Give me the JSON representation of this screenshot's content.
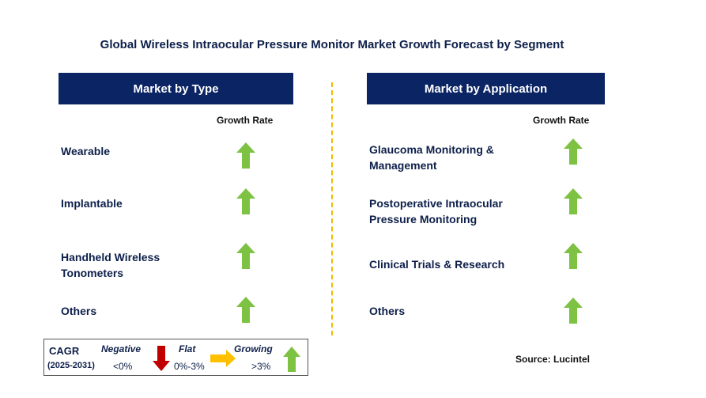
{
  "title": "Global Wireless Intraocular Pressure Monitor Market Growth Forecast by Segment",
  "left_panel": {
    "header": "Market by Type",
    "growth_rate_label": "Growth Rate",
    "items": [
      {
        "lines": [
          "Wearable"
        ],
        "trend": "growing"
      },
      {
        "lines": [
          "Implantable"
        ],
        "trend": "growing"
      },
      {
        "lines": [
          "Handheld Wireless",
          "Tonometers"
        ],
        "trend": "growing"
      },
      {
        "lines": [
          "Others"
        ],
        "trend": "growing"
      }
    ]
  },
  "right_panel": {
    "header": "Market by Application",
    "growth_rate_label": "Growth Rate",
    "items": [
      {
        "lines": [
          "Glaucoma Monitoring &",
          "Management"
        ],
        "trend": "growing"
      },
      {
        "lines": [
          "Postoperative Intraocular",
          "Pressure Monitoring"
        ],
        "trend": "growing"
      },
      {
        "lines": [
          "Clinical Trials & Research"
        ],
        "trend": "growing"
      },
      {
        "lines": [
          "Others"
        ],
        "trend": "growing"
      }
    ]
  },
  "legend": {
    "cagr_label": "CAGR",
    "period": "(2025-2031)",
    "negative_label": "Negative",
    "negative_range": "<0%",
    "flat_label": "Flat",
    "flat_range": "0%-3%",
    "growing_label": "Growing",
    "growing_range": ">3%"
  },
  "source": "Source: Lucintel",
  "colors": {
    "header_bg": "#0b2463",
    "text": "#0d1f4a",
    "growing_arrow": "#7dc242",
    "negative_arrow": "#c00000",
    "flat_arrow": "#ffc000",
    "divider": "#f2b800"
  },
  "icons": {
    "growing": "green-up-arrow-icon",
    "negative": "red-down-arrow-icon",
    "flat": "yellow-right-arrow-icon"
  }
}
